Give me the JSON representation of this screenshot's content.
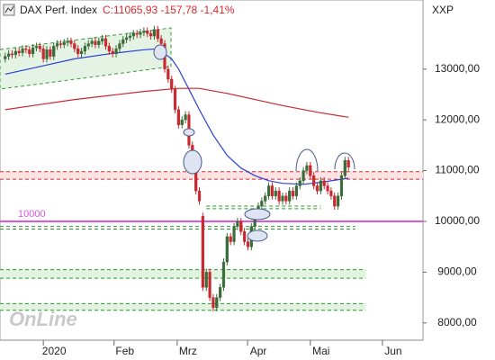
{
  "chart_data": {
    "type": "candlestick",
    "title": "DAX Perf. Index",
    "subtitle": "C:11065,93 -157,78 -1,41%",
    "corner_label": "XXP",
    "watermark": "OnLine",
    "x": [
      0,
      1,
      2,
      3,
      4,
      5,
      6,
      7,
      8,
      9,
      10,
      11,
      12,
      13,
      14,
      15,
      16,
      17,
      18,
      19,
      20,
      21,
      22,
      23,
      24,
      25,
      26,
      27,
      28,
      29,
      30,
      31,
      32,
      33,
      34,
      35,
      36,
      37,
      38,
      39,
      40,
      41,
      42,
      43,
      44,
      45,
      46,
      47,
      48,
      49,
      50,
      51,
      52,
      53,
      54,
      55,
      56,
      57,
      58,
      59,
      60,
      61,
      62,
      63,
      64,
      65,
      66,
      67,
      68,
      69,
      70,
      71,
      72,
      73,
      74,
      75,
      76,
      77,
      78,
      79,
      80,
      81,
      82,
      83,
      84,
      85,
      86,
      87,
      88,
      89,
      90,
      91,
      92,
      93,
      94,
      95,
      96,
      97,
      98,
      99
    ],
    "open": [
      13200,
      13250,
      13300,
      13280,
      13350,
      13320,
      13400,
      13380,
      13300,
      13420,
      13450,
      13400,
      13200,
      13380,
      13250,
      13450,
      13500,
      13480,
      13520,
      13550,
      13500,
      13400,
      13300,
      13350,
      13450,
      13500,
      13550,
      13480,
      13550,
      13600,
      13450,
      13350,
      13300,
      13400,
      13500,
      13580,
      13620,
      13650,
      13700,
      13680,
      13720,
      13750,
      13700,
      13650,
      13780,
      13600,
      13500,
      13000,
      12800,
      12600,
      12200,
      11900,
      12000,
      12100,
      11500,
      11300,
      10600,
      10100,
      8700,
      9000,
      8500,
      8300,
      8500,
      8700,
      9200,
      9700,
      9600,
      9900,
      10000,
      9800,
      9600,
      9500,
      9900,
      10100,
      10300,
      10400,
      10500,
      10700,
      10500,
      10600,
      10400,
      10500,
      10400,
      10600,
      10500,
      10700,
      10800,
      11000,
      11100,
      10900,
      10700,
      10600,
      10800,
      10700,
      10600,
      10500,
      10300,
      10500,
      10900,
      11200
    ],
    "high": [
      13320,
      13370,
      13370,
      13420,
      13420,
      13470,
      13470,
      13450,
      13490,
      13520,
      13520,
      13470,
      13450,
      13450,
      13520,
      13570,
      13570,
      13590,
      13620,
      13620,
      13570,
      13470,
      13420,
      13520,
      13570,
      13620,
      13620,
      13620,
      13670,
      13670,
      13520,
      13420,
      13470,
      13570,
      13650,
      13690,
      13720,
      13770,
      13770,
      13790,
      13820,
      13820,
      13770,
      13850,
      13850,
      13670,
      13570,
      13070,
      12870,
      12670,
      12270,
      12070,
      12170,
      12170,
      11570,
      11370,
      10670,
      10170,
      9070,
      9070,
      8570,
      8570,
      8770,
      9270,
      9770,
      9770,
      9970,
      10070,
      10070,
      9870,
      9670,
      9970,
      10170,
      10370,
      10470,
      10570,
      10770,
      10770,
      10670,
      10670,
      10570,
      10570,
      10670,
      10670,
      10770,
      10870,
      11070,
      11170,
      11170,
      10970,
      10770,
      10870,
      10870,
      10770,
      10670,
      10570,
      10570,
      10970,
      11270,
      11270
    ],
    "low": [
      13130,
      13180,
      13210,
      13210,
      13250,
      13250,
      13310,
      13230,
      13230,
      13350,
      13330,
      13130,
      13130,
      13180,
      13180,
      13380,
      13410,
      13410,
      13450,
      13430,
      13330,
      13230,
      13230,
      13280,
      13380,
      13430,
      13410,
      13410,
      13480,
      13380,
      13280,
      13230,
      13230,
      13330,
      13430,
      13510,
      13550,
      13580,
      13610,
      13610,
      13650,
      13630,
      13580,
      13580,
      13530,
      13430,
      12930,
      12730,
      12530,
      12130,
      11830,
      11830,
      11930,
      11430,
      11230,
      10530,
      10330,
      8630,
      8630,
      8430,
      8230,
      8230,
      8430,
      8630,
      9130,
      9530,
      9530,
      9830,
      9730,
      9530,
      9430,
      9430,
      9830,
      10030,
      10230,
      10330,
      10430,
      10430,
      10430,
      10330,
      10330,
      10330,
      10330,
      10430,
      10430,
      10630,
      10730,
      10930,
      10830,
      10630,
      10530,
      10530,
      10630,
      10530,
      10430,
      10230,
      10230,
      10430,
      10830,
      10996
    ],
    "close": [
      13250,
      13300,
      13280,
      13350,
      13320,
      13400,
      13380,
      13300,
      13420,
      13450,
      13400,
      13200,
      13380,
      13250,
      13450,
      13500,
      13480,
      13520,
      13550,
      13500,
      13400,
      13300,
      13350,
      13450,
      13500,
      13550,
      13480,
      13550,
      13600,
      13450,
      13350,
      13300,
      13400,
      13500,
      13580,
      13620,
      13650,
      13700,
      13680,
      13720,
      13750,
      13700,
      13650,
      13780,
      13600,
      13500,
      13000,
      12800,
      12600,
      12200,
      11900,
      12000,
      12100,
      11500,
      11300,
      10600,
      10400,
      8700,
      9000,
      8500,
      8300,
      8500,
      8700,
      9200,
      9700,
      9600,
      9900,
      10000,
      9800,
      9600,
      9500,
      9900,
      10100,
      10300,
      10400,
      10500,
      10700,
      10500,
      10600,
      10400,
      10500,
      10400,
      10600,
      10500,
      10700,
      10800,
      11000,
      11100,
      10900,
      10700,
      10600,
      10800,
      10700,
      10600,
      10500,
      10300,
      10500,
      10900,
      11200,
      11066
    ],
    "up_color": "#3a6b3a",
    "down_color": "#c8282e",
    "lines": [
      {
        "color": "#2b3fd6",
        "x": [
          0,
          10,
          20,
          30,
          40,
          44,
          48,
          50,
          53,
          56,
          60,
          64,
          68,
          72,
          76,
          80,
          86,
          92,
          99
        ],
        "values": [
          12900,
          13050,
          13200,
          13300,
          13380,
          13400,
          13200,
          13000,
          12600,
          12200,
          11700,
          11300,
          11050,
          10900,
          10800,
          10750,
          10730,
          10780,
          10850
        ]
      },
      {
        "color": "#c8282e",
        "x": [
          0,
          10,
          20,
          30,
          40,
          50,
          56,
          64,
          72,
          80,
          90,
          99
        ],
        "values": [
          12200,
          12300,
          12400,
          12480,
          12560,
          12620,
          12620,
          12520,
          12400,
          12280,
          12150,
          12050
        ]
      }
    ],
    "zones": [
      {
        "values": [
          10980,
          10830
        ],
        "color": "#d8282e",
        "fill": "#fbe3e4",
        "x": [
          -1.5,
          120.5
        ]
      },
      {
        "values": [
          10300,
          10250
        ],
        "color": "#2a9a2a",
        "x": [
          58,
          91
        ]
      },
      {
        "values": [
          9900,
          9850
        ],
        "color": "#2a9a2a",
        "x": [
          -1.5,
          101
        ]
      },
      {
        "values": [
          9050,
          8880
        ],
        "color": "#2a9a2a",
        "fill": "#e2f3e2",
        "x": [
          -1.5,
          104
        ]
      },
      {
        "values": [
          8380,
          8250
        ],
        "color": "#2a9a2a",
        "fill": "#e2f3e2",
        "x": [
          -1.5,
          104
        ]
      }
    ],
    "level": {
      "value": 10000,
      "label": "10000",
      "color": "#e055e0"
    },
    "xlim": [
      -1.5,
      120.5
    ],
    "xticks": [
      {
        "value": 11,
        "label": "2020"
      },
      {
        "value": 31.4,
        "label": "Feb"
      },
      {
        "value": 49.6,
        "label": "Mrz"
      },
      {
        "value": 69.9,
        "label": "Apr"
      },
      {
        "value": 88,
        "label": "Mai"
      },
      {
        "value": 108.8,
        "label": "Jun"
      }
    ],
    "ylim": [
      7660,
      14360
    ],
    "yticks": [
      {
        "value": 8000,
        "label": "8000,00"
      },
      {
        "value": 9000,
        "label": "9000,00"
      },
      {
        "value": 10000,
        "label": "10000,00"
      },
      {
        "value": 11000,
        "label": "11000,00"
      },
      {
        "value": 12000,
        "label": "12000,00"
      },
      {
        "value": 13000,
        "label": "13000,00"
      }
    ]
  }
}
